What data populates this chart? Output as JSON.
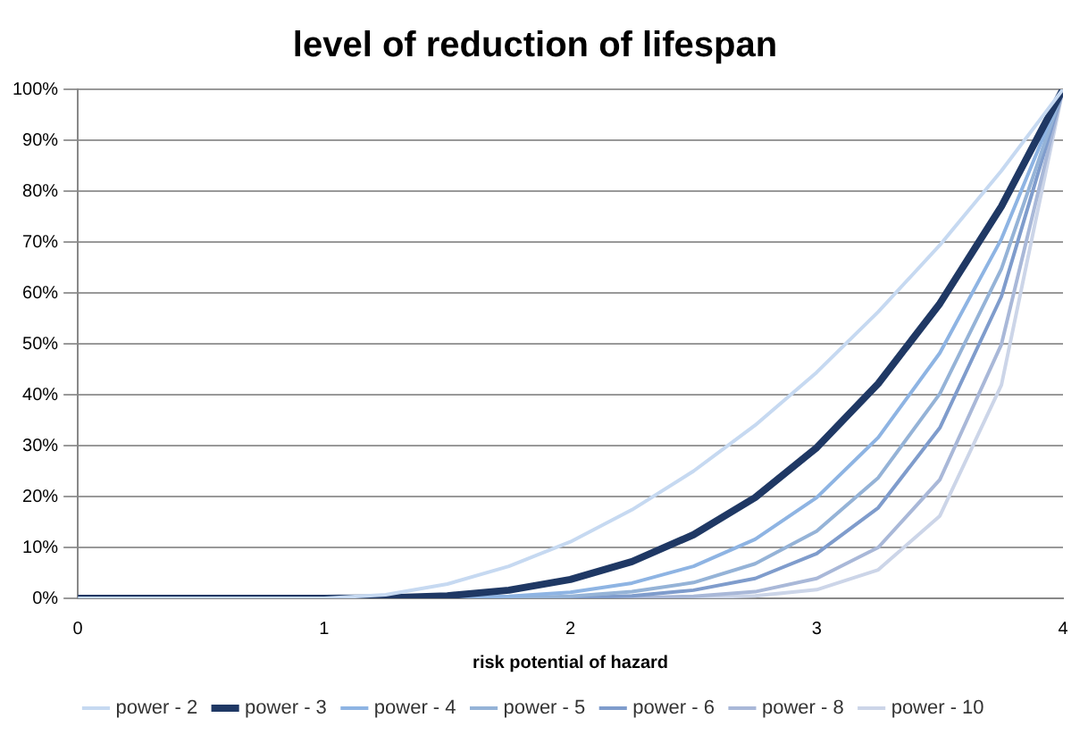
{
  "chart_data": {
    "type": "line",
    "title": "level of reduction of lifespan",
    "xlabel": "risk potential of hazard",
    "x": [
      0,
      1,
      1.25,
      1.5,
      1.75,
      2,
      2.25,
      2.5,
      2.75,
      3,
      3.25,
      3.5,
      3.75,
      4
    ],
    "series": [
      {
        "name": "power - 2",
        "color": "#c6d9f1",
        "values": [
          0,
          0,
          0.7,
          2.8,
          6.3,
          11.1,
          17.4,
          25,
          34,
          44.4,
          56.3,
          69.4,
          84,
          100
        ]
      },
      {
        "name": "power - 3",
        "color": "#1f3864",
        "values": [
          0,
          0,
          0.1,
          0.5,
          1.6,
          3.7,
          7.2,
          12.5,
          19.8,
          29.6,
          42.2,
          57.9,
          77,
          100
        ]
      },
      {
        "name": "power - 4",
        "color": "#8eb4e3",
        "values": [
          0,
          0,
          0,
          0.1,
          0.4,
          1.2,
          3,
          6.3,
          11.6,
          19.8,
          31.6,
          48.2,
          70.6,
          100
        ]
      },
      {
        "name": "power - 5",
        "color": "#95b3d7",
        "values": [
          0,
          0,
          0,
          0,
          0.1,
          0.4,
          1.3,
          3.1,
          6.8,
          13.2,
          23.7,
          40.2,
          64.7,
          100
        ]
      },
      {
        "name": "power - 6",
        "color": "#7f9ccc",
        "values": [
          0,
          0,
          0,
          0,
          0,
          0.1,
          0.5,
          1.6,
          3.9,
          8.8,
          17.8,
          33.5,
          59.3,
          100
        ]
      },
      {
        "name": "power - 8",
        "color": "#a9b8d8",
        "values": [
          0,
          0,
          0,
          0,
          0,
          0,
          0.1,
          0.4,
          1.3,
          3.9,
          10,
          23.3,
          49.9,
          100
        ]
      },
      {
        "name": "power - 10",
        "color": "#ccd5e8",
        "values": [
          0,
          0,
          0,
          0,
          0,
          0,
          0,
          0.1,
          0.5,
          1.7,
          5.6,
          16.2,
          41.9,
          100
        ]
      }
    ],
    "xlim": [
      0,
      4
    ],
    "xticks": [
      0,
      1,
      2,
      3,
      4
    ],
    "ylim": [
      0,
      100
    ],
    "yticks": [
      {
        "value": 0,
        "label": "0%"
      },
      {
        "value": 10,
        "label": "10%"
      },
      {
        "value": 20,
        "label": "20%"
      },
      {
        "value": 30,
        "label": "30%"
      },
      {
        "value": 40,
        "label": "40%"
      },
      {
        "value": 50,
        "label": "50%"
      },
      {
        "value": 60,
        "label": "60%"
      },
      {
        "value": 70,
        "label": "70%"
      },
      {
        "value": 80,
        "label": "80%"
      },
      {
        "value": 90,
        "label": "90%"
      },
      {
        "value": 100,
        "label": "100%"
      }
    ],
    "grid": "y",
    "legend": "bottom",
    "marker": "none",
    "line_style": "solid"
  }
}
